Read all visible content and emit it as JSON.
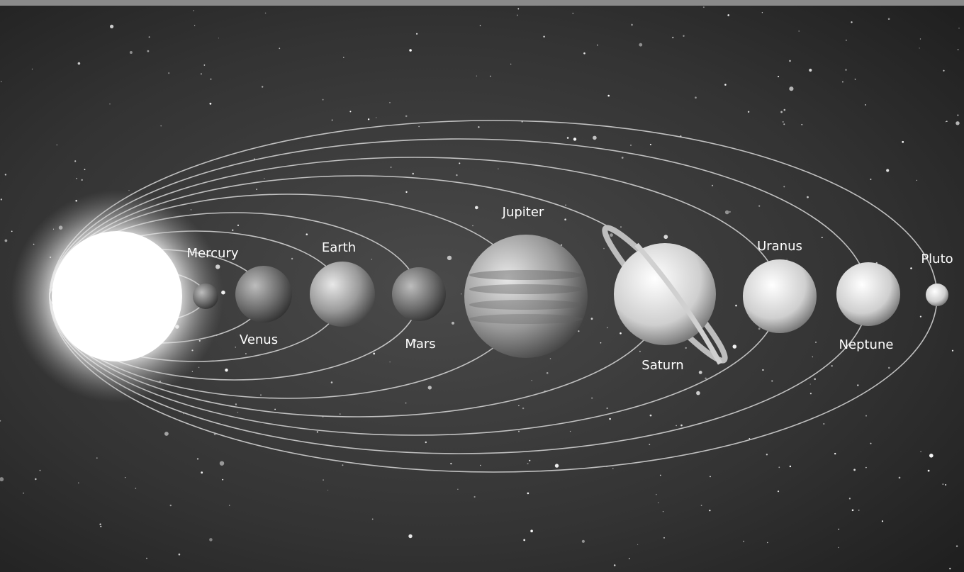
{
  "planets": [
    {
      "label": "Mercury"
    },
    {
      "label": "Venus"
    },
    {
      "label": "Earth"
    },
    {
      "label": "Mars"
    },
    {
      "label": "Jupiter"
    },
    {
      "label": "Saturn"
    },
    {
      "label": "Uranus"
    },
    {
      "label": "Neptune"
    },
    {
      "label": "Pluto"
    }
  ]
}
